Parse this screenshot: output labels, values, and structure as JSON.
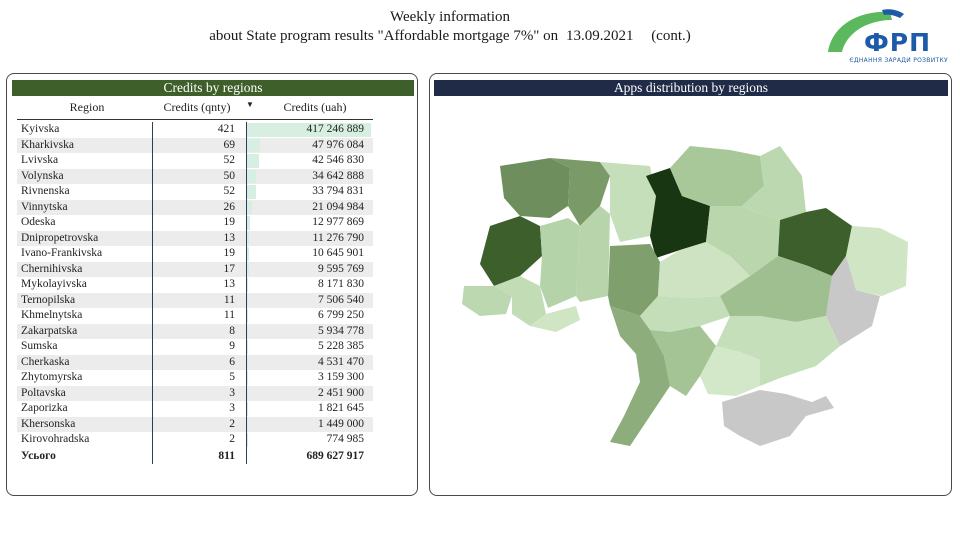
{
  "header": {
    "line1": "Weekly information",
    "line2": "about State program results \"Affordable mortgage 7%\" on",
    "date": "13.09.2021",
    "cont": "(cont.)"
  },
  "logo": {
    "text": "ФРП",
    "slogan": "ЄДНАННЯ ЗАРАДИ РОЗВИТКУ",
    "colors": {
      "blue": "#1d5aa8",
      "green": "#5cb85c"
    }
  },
  "left_panel": {
    "title": "Credits by regions",
    "columns": {
      "region": "Region",
      "qnty": "Credits (qnty)",
      "uah": "Credits (uah)"
    },
    "rows": [
      {
        "region": "Kyivska",
        "qnty": "421",
        "uah": "417 246 889",
        "value": 417246889
      },
      {
        "region": "Kharkivska",
        "qnty": "69",
        "uah": "47 976 084",
        "value": 47976084
      },
      {
        "region": "Lvivska",
        "qnty": "52",
        "uah": "42 546 830",
        "value": 42546830
      },
      {
        "region": "Volynska",
        "qnty": "50",
        "uah": "34 642 888",
        "value": 34642888
      },
      {
        "region": "Rivnenska",
        "qnty": "52",
        "uah": "33 794 831",
        "value": 33794831
      },
      {
        "region": "Vinnytska",
        "qnty": "26",
        "uah": "21 094 984",
        "value": 21094984
      },
      {
        "region": "Odeska",
        "qnty": "19",
        "uah": "12 977 869",
        "value": 12977869
      },
      {
        "region": "Dnipropetrovska",
        "qnty": "13",
        "uah": "11 276 790",
        "value": 11276790
      },
      {
        "region": "Ivano-Frankivska",
        "qnty": "19",
        "uah": "10 645 901",
        "value": 10645901
      },
      {
        "region": "Chernihivska",
        "qnty": "17",
        "uah": "9 595 769",
        "value": 9595769
      },
      {
        "region": "Mykolayivska",
        "qnty": "13",
        "uah": "8 171 830",
        "value": 8171830
      },
      {
        "region": "Ternopilska",
        "qnty": "11",
        "uah": "7 506 540",
        "value": 7506540
      },
      {
        "region": "Khmelnytska",
        "qnty": "11",
        "uah": "6 799 250",
        "value": 6799250
      },
      {
        "region": "Zakarpatska",
        "qnty": "8",
        "uah": "5 934 778",
        "value": 5934778
      },
      {
        "region": "Sumska",
        "qnty": "9",
        "uah": "5 228 385",
        "value": 5228385
      },
      {
        "region": "Cherkaska",
        "qnty": "6",
        "uah": "4 531 470",
        "value": 4531470
      },
      {
        "region": "Zhytomyrska",
        "qnty": "5",
        "uah": "3 159 300",
        "value": 3159300
      },
      {
        "region": "Poltavska",
        "qnty": "3",
        "uah": "2 451 900",
        "value": 2451900
      },
      {
        "region": "Zaporizka",
        "qnty": "3",
        "uah": "1 821 645",
        "value": 1821645
      },
      {
        "region": "Khersonska",
        "qnty": "2",
        "uah": "1 449 000",
        "value": 1449000
      },
      {
        "region": "Kirovohradska",
        "qnty": "2",
        "uah": "774 985",
        "value": 774985
      }
    ],
    "total": {
      "label": "Усього",
      "qnty": "811",
      "uah": "689 627 917"
    },
    "colors": {
      "title_bg": "#3e5f2a",
      "bar": "#d6efe0"
    }
  },
  "right_panel": {
    "title": "Apps distribution by regions",
    "colors": {
      "title_bg": "#1f2b47"
    }
  }
}
